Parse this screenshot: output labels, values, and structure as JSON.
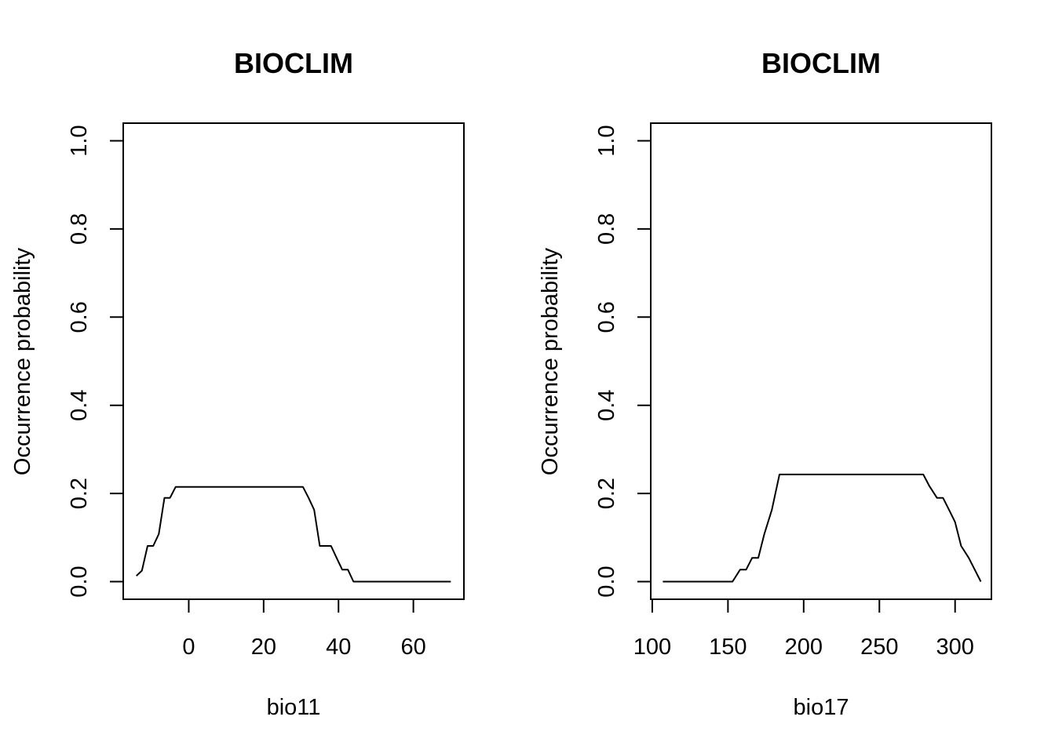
{
  "chart_data": [
    {
      "type": "line",
      "title": "BIOCLIM",
      "xlabel": "bio11",
      "ylabel": "Occurrence probability",
      "xlim": [
        -17.5,
        73.5
      ],
      "ylim": [
        -0.04,
        1.04
      ],
      "xticks": [
        0,
        20,
        40,
        60
      ],
      "xtick_labels": [
        "0",
        "20",
        "40",
        "60"
      ],
      "yticks": [
        0.0,
        0.2,
        0.4,
        0.6,
        0.8,
        1.0
      ],
      "ytick_labels": [
        "0.0",
        "0.2",
        "0.4",
        "0.6",
        "0.8",
        "1.0"
      ],
      "grid": false,
      "line_color": "#000000",
      "series": [
        {
          "x": [
            -14,
            -12.5,
            -11,
            -9.5,
            -8,
            -6.5,
            -5,
            -3.5,
            -2,
            0,
            5,
            10,
            15,
            20,
            25,
            30.5,
            32,
            33.5,
            35,
            36.5,
            38,
            39.5,
            41,
            42.5,
            44,
            45.5,
            47,
            50,
            55,
            60,
            65,
            70
          ],
          "values": [
            0.013,
            0.025,
            0.081,
            0.081,
            0.108,
            0.19,
            0.19,
            0.215,
            0.215,
            0.215,
            0.215,
            0.215,
            0.215,
            0.215,
            0.215,
            0.215,
            0.19,
            0.163,
            0.081,
            0.081,
            0.081,
            0.054,
            0.027,
            0.027,
            0.0,
            0.0,
            0.0,
            0.0,
            0.0,
            0.0,
            0.0,
            0.0
          ]
        }
      ]
    },
    {
      "type": "line",
      "title": "BIOCLIM",
      "xlabel": "bio17",
      "ylabel": "Occurrence probability",
      "xlim": [
        99,
        324
      ],
      "ylim": [
        -0.04,
        1.04
      ],
      "xticks": [
        100,
        150,
        200,
        250,
        300
      ],
      "xtick_labels": [
        "100",
        "150",
        "200",
        "250",
        "300"
      ],
      "yticks": [
        0.0,
        0.2,
        0.4,
        0.6,
        0.8,
        1.0
      ],
      "ytick_labels": [
        "0.0",
        "0.2",
        "0.4",
        "0.6",
        "0.8",
        "1.0"
      ],
      "grid": false,
      "line_color": "#000000",
      "series": [
        {
          "x": [
            107,
            130,
            153,
            158,
            162,
            166,
            170,
            174,
            179,
            184,
            200,
            230,
            260,
            279,
            283,
            288,
            292,
            296,
            300,
            304,
            309,
            317
          ],
          "values": [
            0.0,
            0.0,
            0.0,
            0.027,
            0.027,
            0.054,
            0.054,
            0.108,
            0.163,
            0.243,
            0.243,
            0.243,
            0.243,
            0.243,
            0.217,
            0.19,
            0.19,
            0.163,
            0.135,
            0.081,
            0.054,
            0.0
          ]
        }
      ]
    }
  ]
}
